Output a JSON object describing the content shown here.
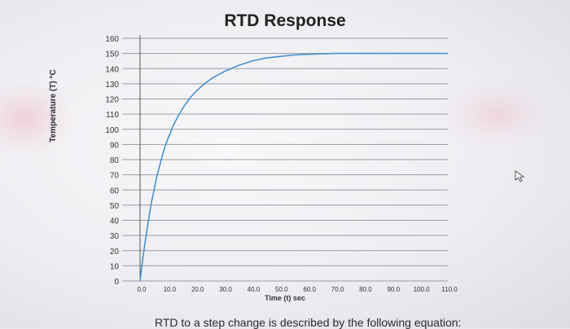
{
  "chart_data": {
    "type": "line",
    "title": "RTD Response",
    "xlabel": "Time (t) sec",
    "ylabel": "Temperature (T) °C",
    "x_ticks": [
      "0.0",
      "10.0",
      "20.0",
      "30.0",
      "40.0",
      "50.0",
      "60.0",
      "70.0",
      "80.0",
      "90.0",
      "100.0",
      "110.0"
    ],
    "y_ticks": [
      "0",
      "10",
      "20",
      "30",
      "40",
      "50",
      "60",
      "70",
      "80",
      "90",
      "100",
      "110",
      "120",
      "130",
      "140",
      "150",
      "160"
    ],
    "xlim": [
      0,
      110
    ],
    "ylim": [
      0,
      160
    ],
    "grid": "horizontal",
    "series": [
      {
        "color": "#4a90d0",
        "x": [
          0,
          1,
          2,
          3,
          4,
          5,
          6,
          7,
          8,
          9,
          10,
          12,
          14,
          16,
          18,
          20,
          23,
          26,
          30,
          35,
          40,
          45,
          50,
          55,
          60,
          70,
          80,
          90,
          100,
          110
        ],
        "y": [
          0,
          15,
          28,
          40,
          51,
          60,
          69,
          76,
          83,
          89,
          94,
          103,
          110,
          116,
          121,
          125,
          130,
          134,
          138,
          142,
          145,
          147,
          148,
          149,
          149.5,
          150,
          150,
          150,
          150,
          150
        ]
      }
    ]
  },
  "page_text": {
    "bottom_caption": "RTD to a step change is described by the following equation:"
  },
  "icons": {
    "cursor": "mouse-pointer-icon"
  }
}
